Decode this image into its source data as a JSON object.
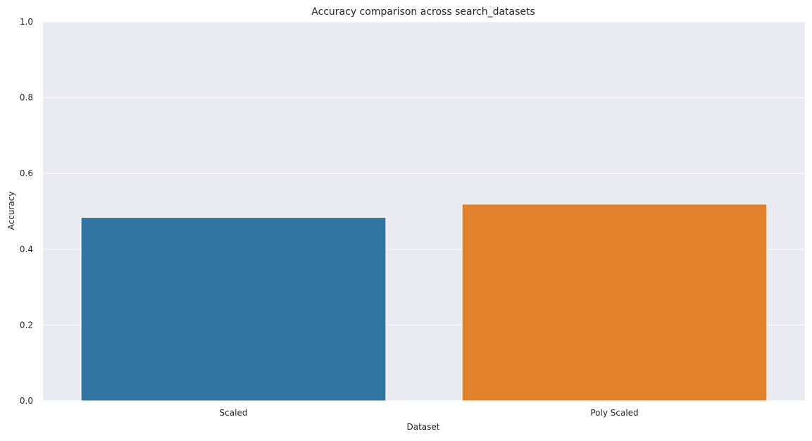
{
  "chart_data": {
    "type": "bar",
    "title": "Accuracy comparison across search_datasets",
    "xlabel": "Dataset",
    "ylabel": "Accuracy",
    "categories": [
      "Scaled",
      "Poly Scaled"
    ],
    "values": [
      0.484,
      0.519
    ],
    "colors": [
      "#3274a1",
      "#e1812c"
    ],
    "ylim": [
      0,
      1.0
    ],
    "yticks": [
      0.0,
      0.2,
      0.4,
      0.6,
      0.8,
      1.0
    ],
    "ytick_labels": [
      "0.0",
      "0.2",
      "0.4",
      "0.6",
      "0.8",
      "1.0"
    ],
    "grid": true,
    "legend": "none",
    "background_color": "#eaeaf2",
    "grid_color": "#ffffff"
  }
}
